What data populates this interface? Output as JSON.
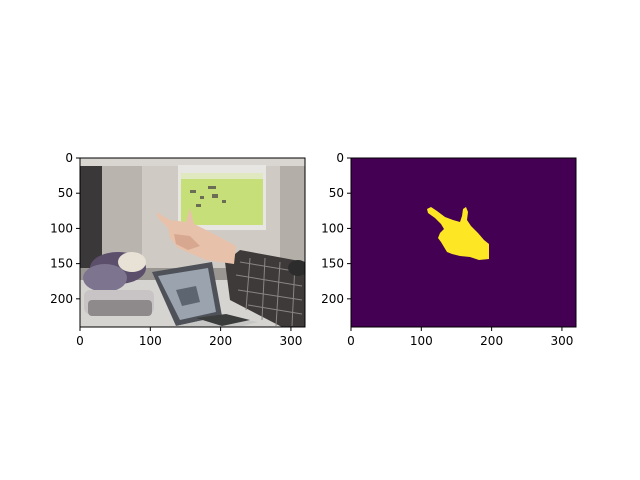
{
  "figure": {
    "background": "#ffffff",
    "panels": [
      {
        "id": "photo",
        "image_content": "photograph: person pointing at projector screen, laptop and bag on table",
        "x_ticks": [
          0,
          100,
          200,
          300
        ],
        "y_ticks": [
          0,
          50,
          100,
          150,
          200
        ],
        "xlim": [
          0,
          320
        ],
        "ylim": [
          0,
          240
        ]
      },
      {
        "id": "mask",
        "image_content": "binary hand segmentation mask",
        "mask_background_color": "#440154",
        "mask_foreground_color": "#fde725",
        "x_ticks": [
          0,
          100,
          200,
          300
        ],
        "y_ticks": [
          0,
          50,
          100,
          150,
          200
        ],
        "xlim": [
          0,
          320
        ],
        "ylim": [
          0,
          240
        ]
      }
    ]
  },
  "colors": {
    "axis": "#000000",
    "mask_bg": "#440154",
    "mask_fg": "#fde725",
    "wall": "#cfcac3",
    "screen": "#c8e27a",
    "table": "#d8d8d8",
    "sleeve": "#3f3b3b",
    "skin": "#e9c3ad"
  }
}
